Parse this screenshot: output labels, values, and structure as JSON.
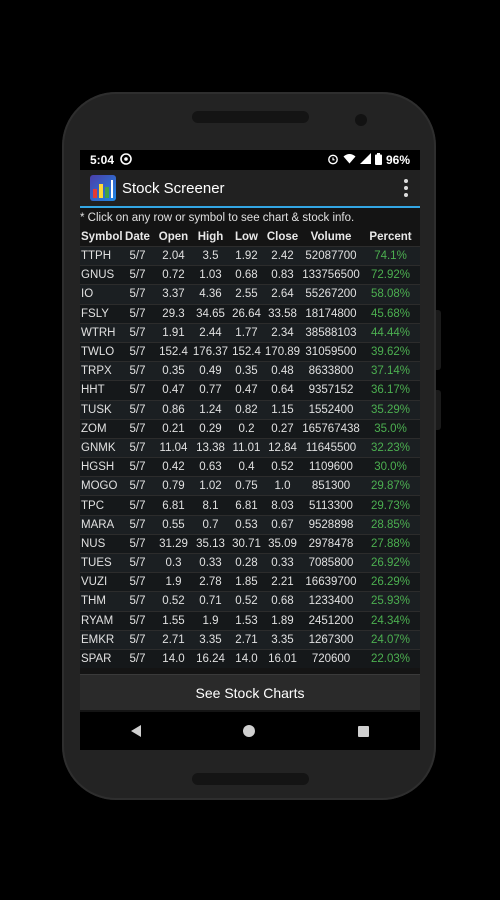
{
  "status": {
    "time": "5:04",
    "battery": "96%"
  },
  "app": {
    "title": "Stock Screener"
  },
  "hint": "* Click on any row or symbol to see chart & stock info.",
  "columns": [
    "Symbol",
    "Date",
    "Open",
    "High",
    "Low",
    "Close",
    "Volume",
    "Percent"
  ],
  "rows": [
    [
      "TTPH",
      "5/7",
      "2.04",
      "3.5",
      "1.92",
      "2.42",
      "52087700",
      "74.1%"
    ],
    [
      "GNUS",
      "5/7",
      "0.72",
      "1.03",
      "0.68",
      "0.83",
      "133756500",
      "72.92%"
    ],
    [
      "IO",
      "5/7",
      "3.37",
      "4.36",
      "2.55",
      "2.64",
      "55267200",
      "58.08%"
    ],
    [
      "FSLY",
      "5/7",
      "29.3",
      "34.65",
      "26.64",
      "33.58",
      "18174800",
      "45.68%"
    ],
    [
      "WTRH",
      "5/7",
      "1.91",
      "2.44",
      "1.77",
      "2.34",
      "38588103",
      "44.44%"
    ],
    [
      "TWLO",
      "5/7",
      "152.4",
      "176.37",
      "152.4",
      "170.89",
      "31059500",
      "39.62%"
    ],
    [
      "TRPX",
      "5/7",
      "0.35",
      "0.49",
      "0.35",
      "0.48",
      "8633800",
      "37.14%"
    ],
    [
      "HHT",
      "5/7",
      "0.47",
      "0.77",
      "0.47",
      "0.64",
      "9357152",
      "36.17%"
    ],
    [
      "TUSK",
      "5/7",
      "0.86",
      "1.24",
      "0.82",
      "1.15",
      "1552400",
      "35.29%"
    ],
    [
      "ZOM",
      "5/7",
      "0.21",
      "0.29",
      "0.2",
      "0.27",
      "165767438",
      "35.0%"
    ],
    [
      "GNMK",
      "5/7",
      "11.04",
      "13.38",
      "11.01",
      "12.84",
      "11645500",
      "32.23%"
    ],
    [
      "HGSH",
      "5/7",
      "0.42",
      "0.63",
      "0.4",
      "0.52",
      "1109600",
      "30.0%"
    ],
    [
      "MOGO",
      "5/7",
      "0.79",
      "1.02",
      "0.75",
      "1.0",
      "851300",
      "29.87%"
    ],
    [
      "TPC",
      "5/7",
      "6.81",
      "8.1",
      "6.81",
      "8.03",
      "5113300",
      "29.73%"
    ],
    [
      "MARA",
      "5/7",
      "0.55",
      "0.7",
      "0.53",
      "0.67",
      "9528898",
      "28.85%"
    ],
    [
      "NUS",
      "5/7",
      "31.29",
      "35.13",
      "30.71",
      "35.09",
      "2978478",
      "27.88%"
    ],
    [
      "TUES",
      "5/7",
      "0.3",
      "0.33",
      "0.28",
      "0.33",
      "7085800",
      "26.92%"
    ],
    [
      "VUZI",
      "5/7",
      "1.9",
      "2.78",
      "1.85",
      "2.21",
      "16639700",
      "26.29%"
    ],
    [
      "THM",
      "5/7",
      "0.52",
      "0.71",
      "0.52",
      "0.68",
      "1233400",
      "25.93%"
    ],
    [
      "RYAM",
      "5/7",
      "1.55",
      "1.9",
      "1.53",
      "1.89",
      "2451200",
      "24.34%"
    ],
    [
      "EMKR",
      "5/7",
      "2.71",
      "3.35",
      "2.71",
      "3.35",
      "1267300",
      "24.07%"
    ],
    [
      "SPAR",
      "5/7",
      "14.0",
      "16.24",
      "14.0",
      "16.01",
      "720600",
      "22.03%"
    ]
  ],
  "footer": {
    "button_label": "See Stock Charts"
  },
  "colors": {
    "accent": "#33a6e4",
    "positive": "#4caf50"
  },
  "icons": [
    "signal-icon",
    "wifi-icon",
    "battery-icon",
    "alarm-icon",
    "overflow-menu-icon",
    "back-icon",
    "home-icon",
    "recents-icon"
  ]
}
